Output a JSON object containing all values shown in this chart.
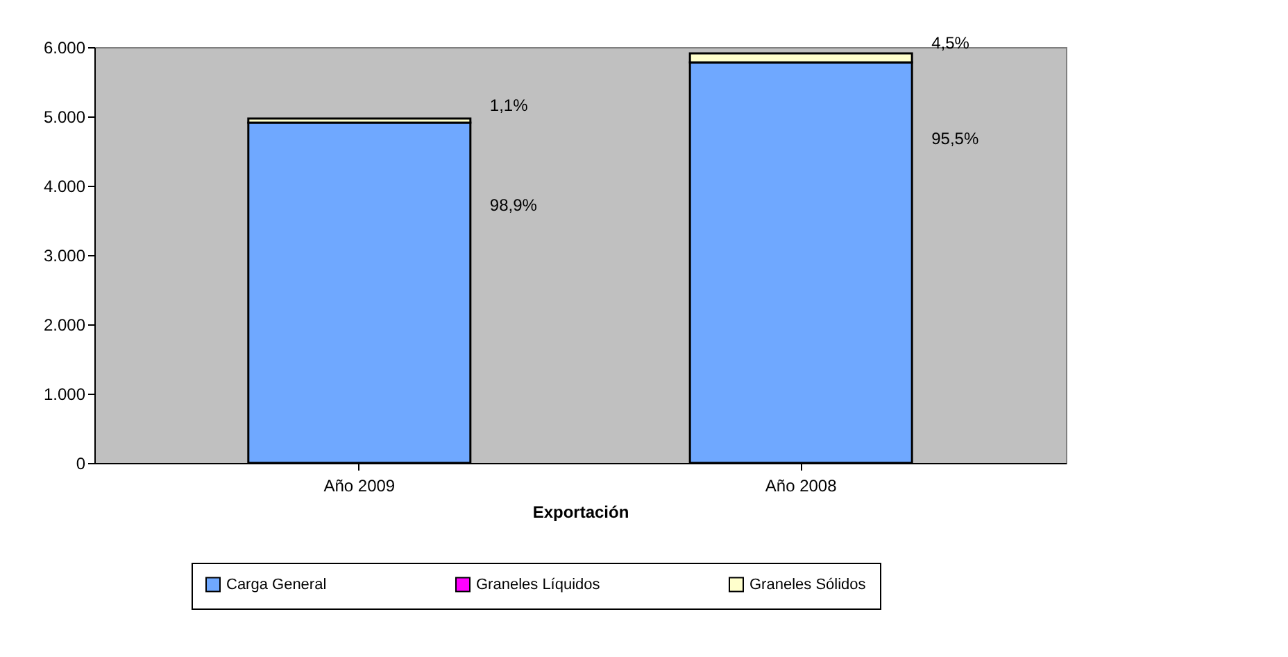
{
  "chart_data": {
    "type": "bar",
    "stacked": true,
    "xlabel": "Exportación",
    "categories": [
      "Año 2009",
      "Año 2008"
    ],
    "series": [
      {
        "name": "Carga General",
        "color": "#6fa8ff",
        "values": [
          4910,
          5780
        ]
      },
      {
        "name": "Graneles Líquidos",
        "color": "#ff00ff",
        "values": [
          null,
          null
        ]
      },
      {
        "name": "Graneles Sólidos",
        "color": "#ffffcc",
        "values": [
          60,
          130
        ]
      }
    ],
    "annotations": [
      "98,9%",
      "1,1%",
      "95,5%",
      "4,5%"
    ],
    "ylim": [
      0,
      6000
    ],
    "yticks": [
      {
        "value": 0,
        "label": "0"
      },
      {
        "value": 1000,
        "label": "1.000"
      },
      {
        "value": 2000,
        "label": "2.000"
      },
      {
        "value": 3000,
        "label": "3.000"
      },
      {
        "value": 4000,
        "label": "4.000"
      },
      {
        "value": 5000,
        "label": "5.000"
      },
      {
        "value": 6000,
        "label": "6.000"
      }
    ],
    "grid": false,
    "legend": "bottom"
  }
}
